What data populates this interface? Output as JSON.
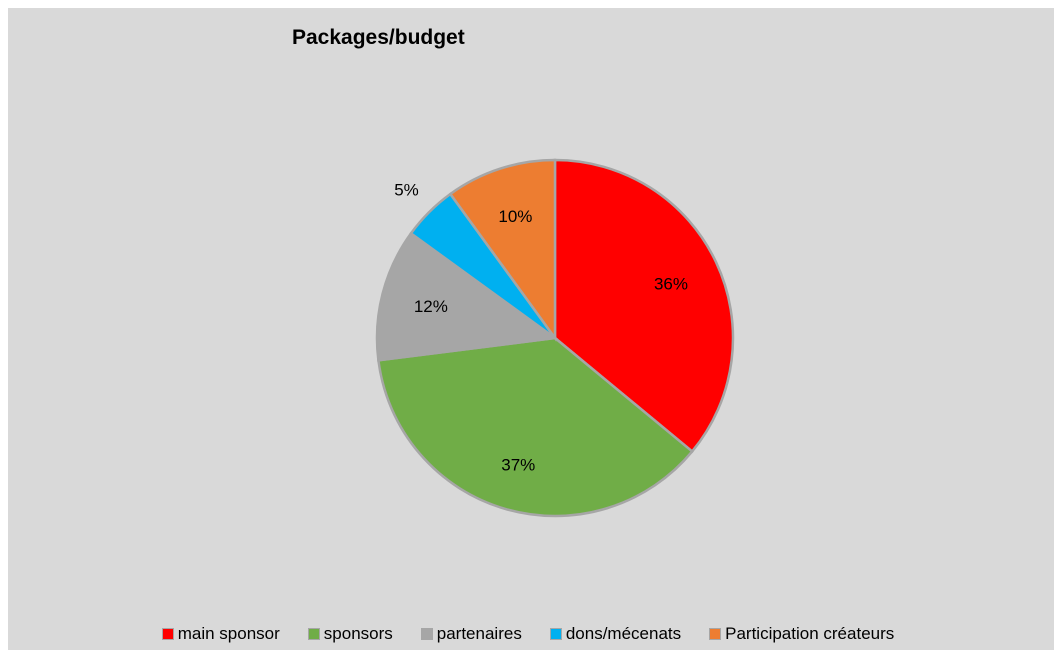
{
  "chart_data": {
    "type": "pie",
    "title": "Packages/budget",
    "categories": [
      "main sponsor",
      "sponsors",
      "partenaires",
      "dons/mécenats",
      "Participation créateurs"
    ],
    "values": [
      36,
      37,
      12,
      5,
      10
    ],
    "value_labels": [
      "36%",
      "37%",
      "12%",
      "5%",
      "10%"
    ],
    "colors": [
      "#ff0000",
      "#70ad47",
      "#a6a6a6",
      "#00b0f0",
      "#ed7d31"
    ],
    "start_angle_deg": 0,
    "direction": "clockwise",
    "legend_position": "bottom"
  }
}
